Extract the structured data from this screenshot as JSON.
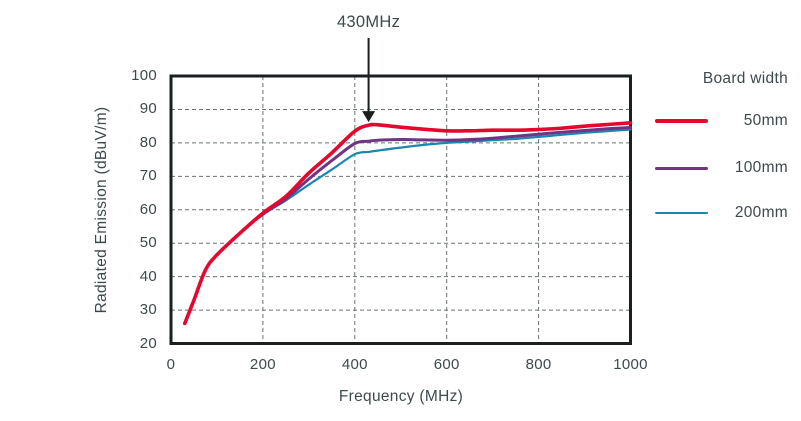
{
  "figure": {
    "background": "#ffffff"
  },
  "style": {
    "text_color": "#3d4a4c",
    "frame_color": "#1a1f1f",
    "grid_color": "#6b7373",
    "arrow_color": "#1a1f1f"
  },
  "chart_data": {
    "type": "line",
    "title": "",
    "xlabel": "Frequency (MHz)",
    "ylabel": "Radiated Emission (dBuV/m)",
    "xlim": [
      0,
      1000
    ],
    "ylim": [
      20,
      100
    ],
    "xticks": [
      0,
      200,
      400,
      600,
      800,
      1000
    ],
    "yticks": [
      20,
      30,
      40,
      50,
      60,
      70,
      80,
      90,
      100
    ],
    "grid": "dashed",
    "legend": {
      "title": "Board width",
      "position": "right"
    },
    "annotation": {
      "text": "430MHz",
      "x": 430,
      "points_to_db": 85.3
    },
    "x": [
      30,
      50,
      75,
      100,
      150,
      200,
      250,
      300,
      350,
      400,
      430,
      450,
      500,
      550,
      600,
      650,
      700,
      750,
      800,
      850,
      900,
      950,
      1000
    ],
    "series": [
      {
        "name": "50mm",
        "color": "#e4082f",
        "stroke_width": 3.6,
        "values": [
          26,
          33,
          42,
          46.5,
          53,
          59,
          64,
          71,
          77,
          83.5,
          85.3,
          85.4,
          84.7,
          84.1,
          83.6,
          83.6,
          83.8,
          83.8,
          84.0,
          84.4,
          85.0,
          85.5,
          86.0
        ]
      },
      {
        "name": "100mm",
        "color": "#6f3484",
        "stroke_width": 3,
        "values": [
          26,
          33,
          42,
          46.5,
          53,
          58.7,
          63.3,
          69.2,
          74.7,
          79.8,
          80.5,
          80.8,
          81.0,
          80.9,
          80.8,
          81.0,
          81.4,
          82.0,
          82.6,
          83.2,
          83.7,
          84.2,
          84.6
        ]
      },
      {
        "name": "200mm",
        "color": "#1b87ae",
        "stroke_width": 2.2,
        "values": [
          26,
          33,
          42,
          46.5,
          53,
          58.5,
          62.8,
          67.5,
          72,
          76.6,
          77.3,
          77.7,
          78.6,
          79.4,
          80.0,
          80.4,
          80.8,
          81.2,
          81.8,
          82.4,
          83.0,
          83.5,
          84.0
        ]
      }
    ]
  }
}
